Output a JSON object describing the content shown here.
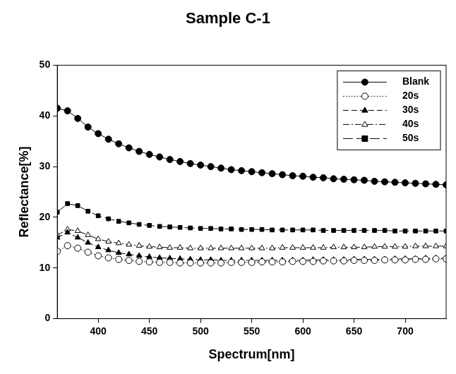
{
  "chart_data": {
    "type": "line",
    "title": "Sample C-1",
    "x_label": "Spectrum[nm]",
    "y_label": "Reflectance[%]",
    "x": [
      360,
      370,
      380,
      390,
      400,
      410,
      420,
      430,
      440,
      450,
      460,
      470,
      480,
      490,
      500,
      510,
      520,
      530,
      540,
      550,
      560,
      570,
      580,
      590,
      600,
      610,
      620,
      630,
      640,
      650,
      660,
      670,
      680,
      690,
      700,
      710,
      720,
      730,
      740
    ],
    "series": [
      {
        "name": "Blank",
        "color": "#000000",
        "marker": "circle",
        "line_style": "solid",
        "values": [
          41.5,
          41.0,
          39.5,
          37.8,
          36.5,
          35.4,
          34.5,
          33.7,
          33.0,
          32.4,
          31.9,
          31.4,
          31.0,
          30.6,
          30.3,
          30.0,
          29.7,
          29.4,
          29.2,
          29.0,
          28.8,
          28.6,
          28.4,
          28.2,
          28.1,
          27.9,
          27.8,
          27.6,
          27.5,
          27.4,
          27.3,
          27.1,
          27.0,
          26.9,
          26.8,
          26.7,
          26.6,
          26.5,
          26.4
        ]
      },
      {
        "name": "20s",
        "color": "#000000",
        "marker": "circle_open",
        "line_style": "dotted",
        "values": [
          13.3,
          14.4,
          13.9,
          13.1,
          12.4,
          12.0,
          11.7,
          11.5,
          11.3,
          11.2,
          11.1,
          11.1,
          11.0,
          11.0,
          11.0,
          11.0,
          11.0,
          11.1,
          11.1,
          11.1,
          11.2,
          11.2,
          11.2,
          11.3,
          11.3,
          11.3,
          11.4,
          11.4,
          11.4,
          11.5,
          11.5,
          11.5,
          11.6,
          11.6,
          11.6,
          11.7,
          11.7,
          11.8,
          11.8
        ]
      },
      {
        "name": "30s",
        "color": "#000000",
        "marker": "triangle",
        "line_style": "dashed",
        "values": [
          16.0,
          17.0,
          16.0,
          15.0,
          14.1,
          13.5,
          13.0,
          12.7,
          12.4,
          12.2,
          12.0,
          11.9,
          11.8,
          11.7,
          11.6,
          11.6,
          11.5,
          11.5,
          11.5,
          11.5,
          11.5,
          11.5,
          11.5,
          11.5,
          11.5,
          11.6,
          11.6,
          11.6,
          11.6,
          11.7,
          11.7,
          11.7,
          11.7,
          11.8,
          11.8,
          11.8,
          11.9,
          11.9,
          11.9
        ]
      },
      {
        "name": "40s",
        "color": "#000000",
        "marker": "triangle_open",
        "line_style": "dashdot",
        "values": [
          16.5,
          17.6,
          17.3,
          16.5,
          15.7,
          15.2,
          14.9,
          14.6,
          14.4,
          14.2,
          14.1,
          14.0,
          14.0,
          13.9,
          13.9,
          13.9,
          13.9,
          13.9,
          13.9,
          13.9,
          13.9,
          13.9,
          14.0,
          14.0,
          14.0,
          14.0,
          14.0,
          14.1,
          14.1,
          14.1,
          14.1,
          14.2,
          14.2,
          14.2,
          14.2,
          14.3,
          14.3,
          14.3,
          14.3
        ]
      },
      {
        "name": "50s",
        "color": "#000000",
        "marker": "square",
        "line_style": "longdash",
        "values": [
          21.0,
          22.7,
          22.3,
          21.2,
          20.3,
          19.7,
          19.2,
          18.9,
          18.6,
          18.4,
          18.2,
          18.1,
          18.0,
          17.9,
          17.8,
          17.8,
          17.7,
          17.7,
          17.6,
          17.6,
          17.6,
          17.5,
          17.5,
          17.5,
          17.5,
          17.5,
          17.4,
          17.4,
          17.4,
          17.4,
          17.4,
          17.4,
          17.4,
          17.3,
          17.3,
          17.3,
          17.3,
          17.3,
          17.3
        ]
      }
    ],
    "xlim": [
      360,
      740
    ],
    "xticks": [
      400,
      450,
      500,
      550,
      600,
      650,
      700
    ],
    "ylim": [
      0,
      50
    ],
    "yticks": [
      0,
      10,
      20,
      30,
      40,
      50
    ],
    "grid": false,
    "legend": "upper right"
  }
}
